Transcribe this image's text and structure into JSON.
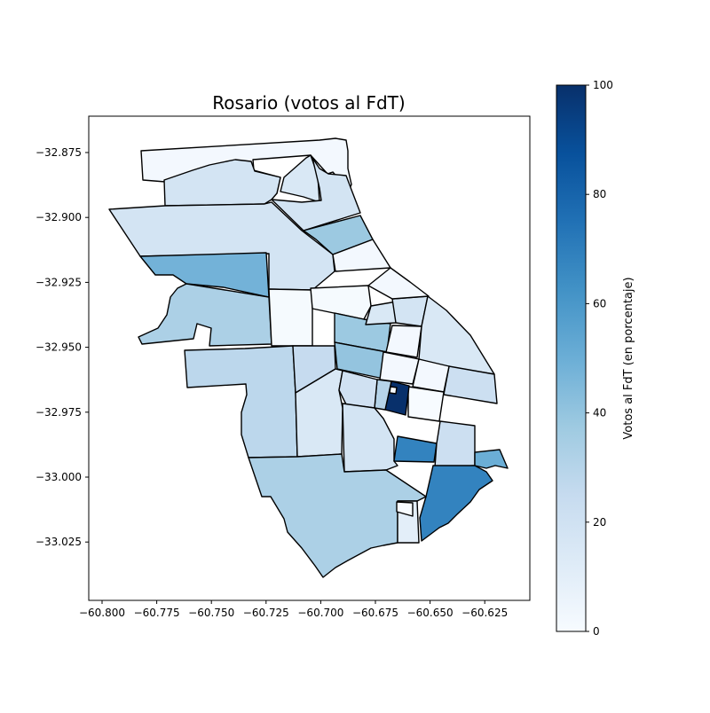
{
  "figure": {
    "title": "Rosario (votos al FdT)"
  },
  "map": {
    "x_ticks": [
      "−60.800",
      "−60.775",
      "−60.750",
      "−60.725",
      "−60.700",
      "−60.675",
      "−60.650",
      "−60.625"
    ],
    "y_ticks": [
      "−32.875",
      "−32.900",
      "−32.925",
      "−32.950",
      "−32.975",
      "−33.000",
      "−33.025"
    ],
    "x_range": [
      -60.804,
      -60.607
    ],
    "y_range": [
      -33.046,
      -32.861
    ],
    "colormap": "Blues",
    "regions": [
      {
        "id": "north-strip",
        "value": 2
      },
      {
        "id": "north-band",
        "value": 18
      },
      {
        "id": "north-east",
        "value": 15
      },
      {
        "id": "north-center-east",
        "value": 18
      },
      {
        "id": "ne-blue",
        "value": 38
      },
      {
        "id": "west-big",
        "value": 18
      },
      {
        "id": "west-blue",
        "value": 48
      },
      {
        "id": "west-south",
        "value": 33
      },
      {
        "id": "small-white-1",
        "value": 1
      },
      {
        "id": "small-white-2",
        "value": 2
      },
      {
        "id": "small-white-3",
        "value": 1
      },
      {
        "id": "center-blue-1",
        "value": 38
      },
      {
        "id": "center-blue-2",
        "value": 40
      },
      {
        "id": "center-light-1",
        "value": 15
      },
      {
        "id": "center-light-2",
        "value": 18
      },
      {
        "id": "east-1",
        "value": 15
      },
      {
        "id": "east-2",
        "value": 22
      },
      {
        "id": "east-white-1",
        "value": 2
      },
      {
        "id": "east-white-2",
        "value": 2
      },
      {
        "id": "east-white-3",
        "value": 2
      },
      {
        "id": "east-white-4",
        "value": 2
      },
      {
        "id": "east-white-5",
        "value": 0
      },
      {
        "id": "dark-center",
        "value": 100
      },
      {
        "id": "center-mid",
        "value": 30
      },
      {
        "id": "south-west",
        "value": 28
      },
      {
        "id": "south-center",
        "value": 25
      },
      {
        "id": "south-center-2",
        "value": 15
      },
      {
        "id": "south-center-3",
        "value": 20
      },
      {
        "id": "south-center-4",
        "value": 18
      },
      {
        "id": "south-blue",
        "value": 68
      },
      {
        "id": "south-east",
        "value": 22
      },
      {
        "id": "south-east-dark",
        "value": 68
      },
      {
        "id": "south-east-light",
        "value": 50
      },
      {
        "id": "south-big",
        "value": 33
      },
      {
        "id": "south-small",
        "value": 10
      },
      {
        "id": "south-white",
        "value": 0
      }
    ]
  },
  "colorbar": {
    "label": "Votos al FdT (en porcentaje)",
    "min": 0,
    "max": 100,
    "ticks": [
      "0",
      "20",
      "40",
      "60",
      "80",
      "100"
    ]
  },
  "colors": {
    "low": "#f7fbff",
    "high": "#08306b",
    "stroke": "#000000"
  }
}
